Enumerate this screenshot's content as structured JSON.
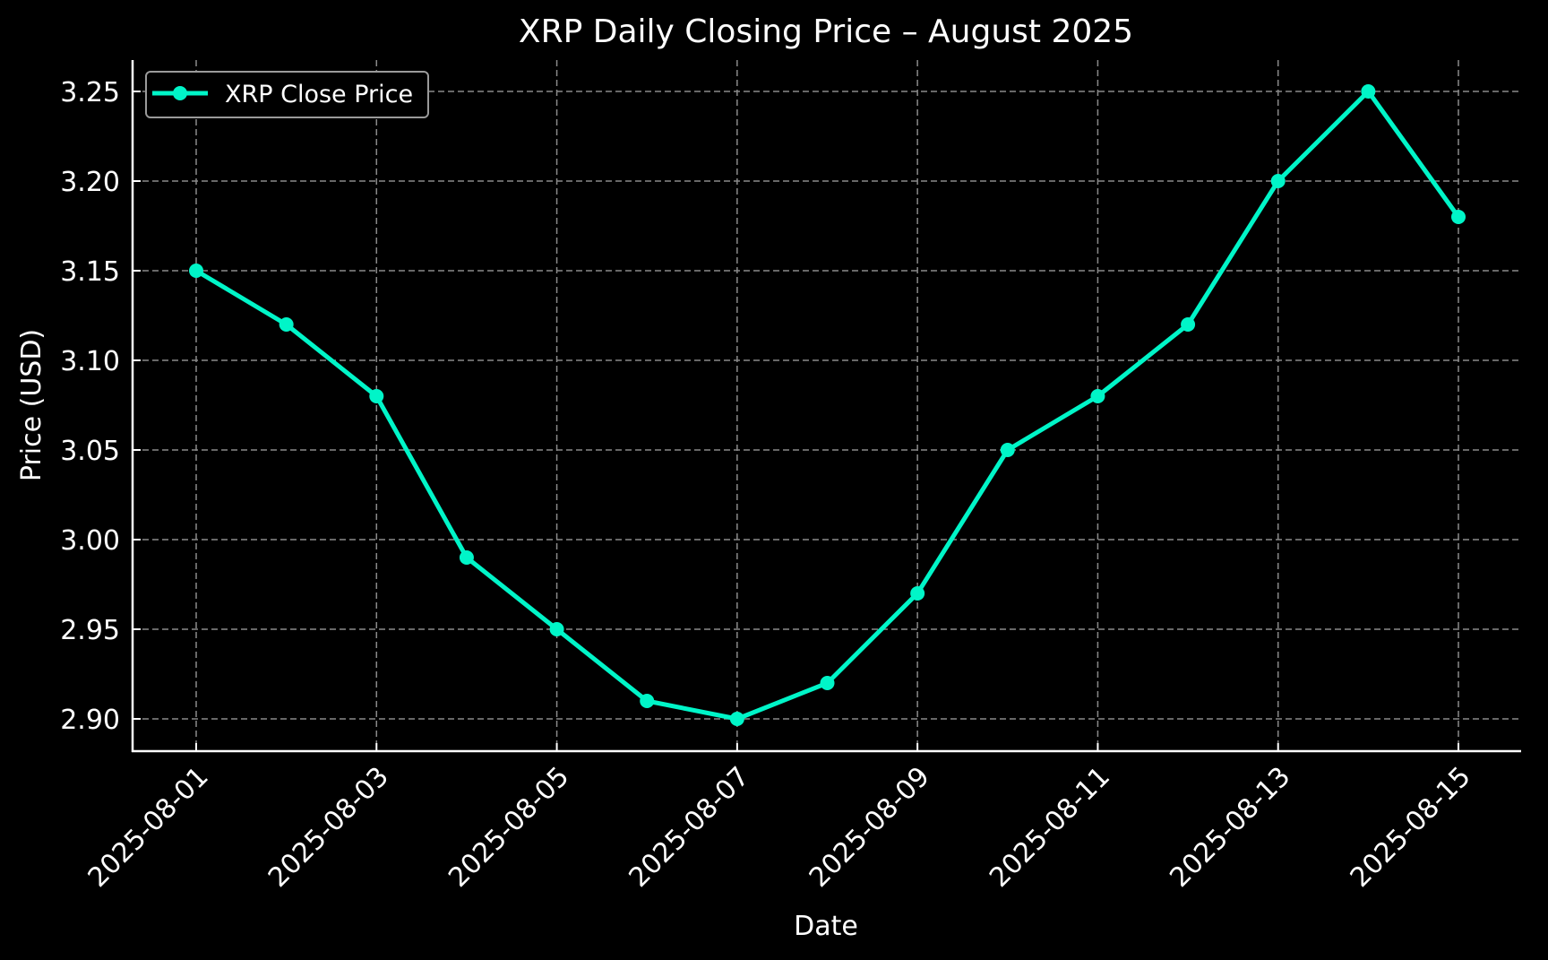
{
  "chart_data": {
    "type": "line",
    "title": "XRP Daily Closing Price – August 2025",
    "xlabel": "Date",
    "ylabel": "Price (USD)",
    "x": [
      "2025-08-01",
      "2025-08-02",
      "2025-08-03",
      "2025-08-04",
      "2025-08-05",
      "2025-08-06",
      "2025-08-07",
      "2025-08-08",
      "2025-08-09",
      "2025-08-10",
      "2025-08-11",
      "2025-08-12",
      "2025-08-13",
      "2025-08-14",
      "2025-08-15"
    ],
    "series": [
      {
        "name": "XRP Close Price",
        "color": "#00f5c8",
        "marker": "circle",
        "values": [
          3.15,
          3.12,
          3.08,
          2.99,
          2.95,
          2.91,
          2.9,
          2.92,
          2.97,
          3.05,
          3.08,
          3.12,
          3.2,
          3.25,
          3.18
        ]
      }
    ],
    "x_tick_labels": [
      "2025-08-01",
      "2025-08-03",
      "2025-08-05",
      "2025-08-07",
      "2025-08-09",
      "2025-08-11",
      "2025-08-13",
      "2025-08-15"
    ],
    "y_tick_labels": [
      "2.90",
      "2.95",
      "3.00",
      "3.05",
      "3.10",
      "3.15",
      "3.20",
      "3.25"
    ],
    "ylim": [
      2.882,
      3.268
    ],
    "grid": true,
    "grid_style": "dashed",
    "legend_position": "upper left",
    "background": "#000000",
    "foreground": "#ffffff"
  }
}
